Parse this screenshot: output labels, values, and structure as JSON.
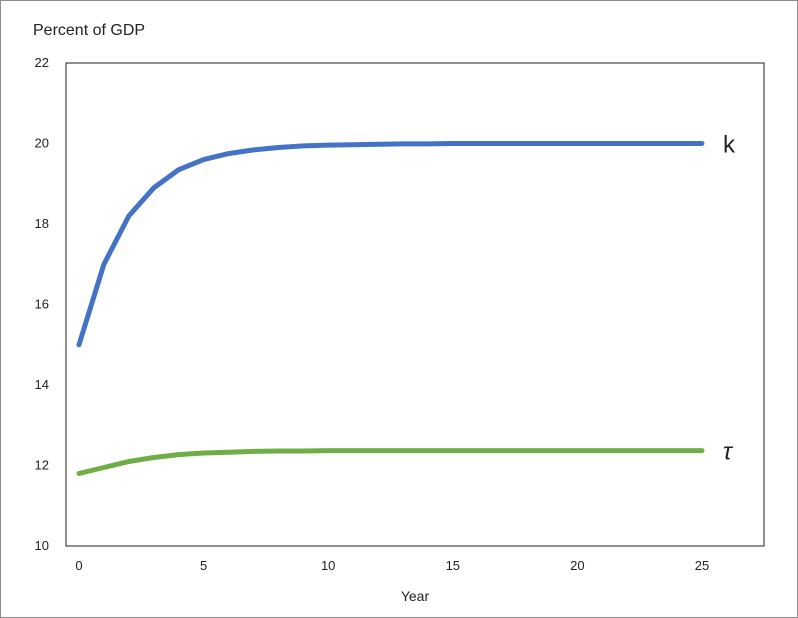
{
  "chart_data": {
    "type": "line",
    "title": "",
    "ylabel": "Percent of GDP",
    "xlabel": "Year",
    "xlim": [
      0,
      25
    ],
    "ylim": [
      10,
      22
    ],
    "x_ticks": [
      "0",
      "5",
      "10",
      "15",
      "20",
      "25"
    ],
    "y_ticks": [
      "10",
      "12",
      "14",
      "16",
      "18",
      "20",
      "22"
    ],
    "grid": false,
    "legend": "none",
    "x": [
      0,
      1,
      2,
      3,
      4,
      5,
      6,
      7,
      8,
      9,
      10,
      11,
      12,
      13,
      14,
      15,
      16,
      17,
      18,
      19,
      20,
      21,
      22,
      23,
      24,
      25
    ],
    "series": [
      {
        "name": "k",
        "color": "#4472c4",
        "values": [
          15.0,
          17.0,
          18.2,
          18.9,
          19.35,
          19.6,
          19.75,
          19.84,
          19.9,
          19.94,
          19.96,
          19.97,
          19.98,
          19.99,
          19.99,
          20.0,
          20.0,
          20.0,
          20.0,
          20.0,
          20.0,
          20.0,
          20.0,
          20.0,
          20.0,
          20.0
        ]
      },
      {
        "name": "τ",
        "color": "#70ad47",
        "values": [
          11.8,
          11.95,
          12.1,
          12.2,
          12.27,
          12.31,
          12.33,
          12.35,
          12.36,
          12.36,
          12.37,
          12.37,
          12.37,
          12.37,
          12.37,
          12.37,
          12.37,
          12.37,
          12.37,
          12.37,
          12.37,
          12.37,
          12.37,
          12.37,
          12.37,
          12.37
        ]
      }
    ]
  }
}
